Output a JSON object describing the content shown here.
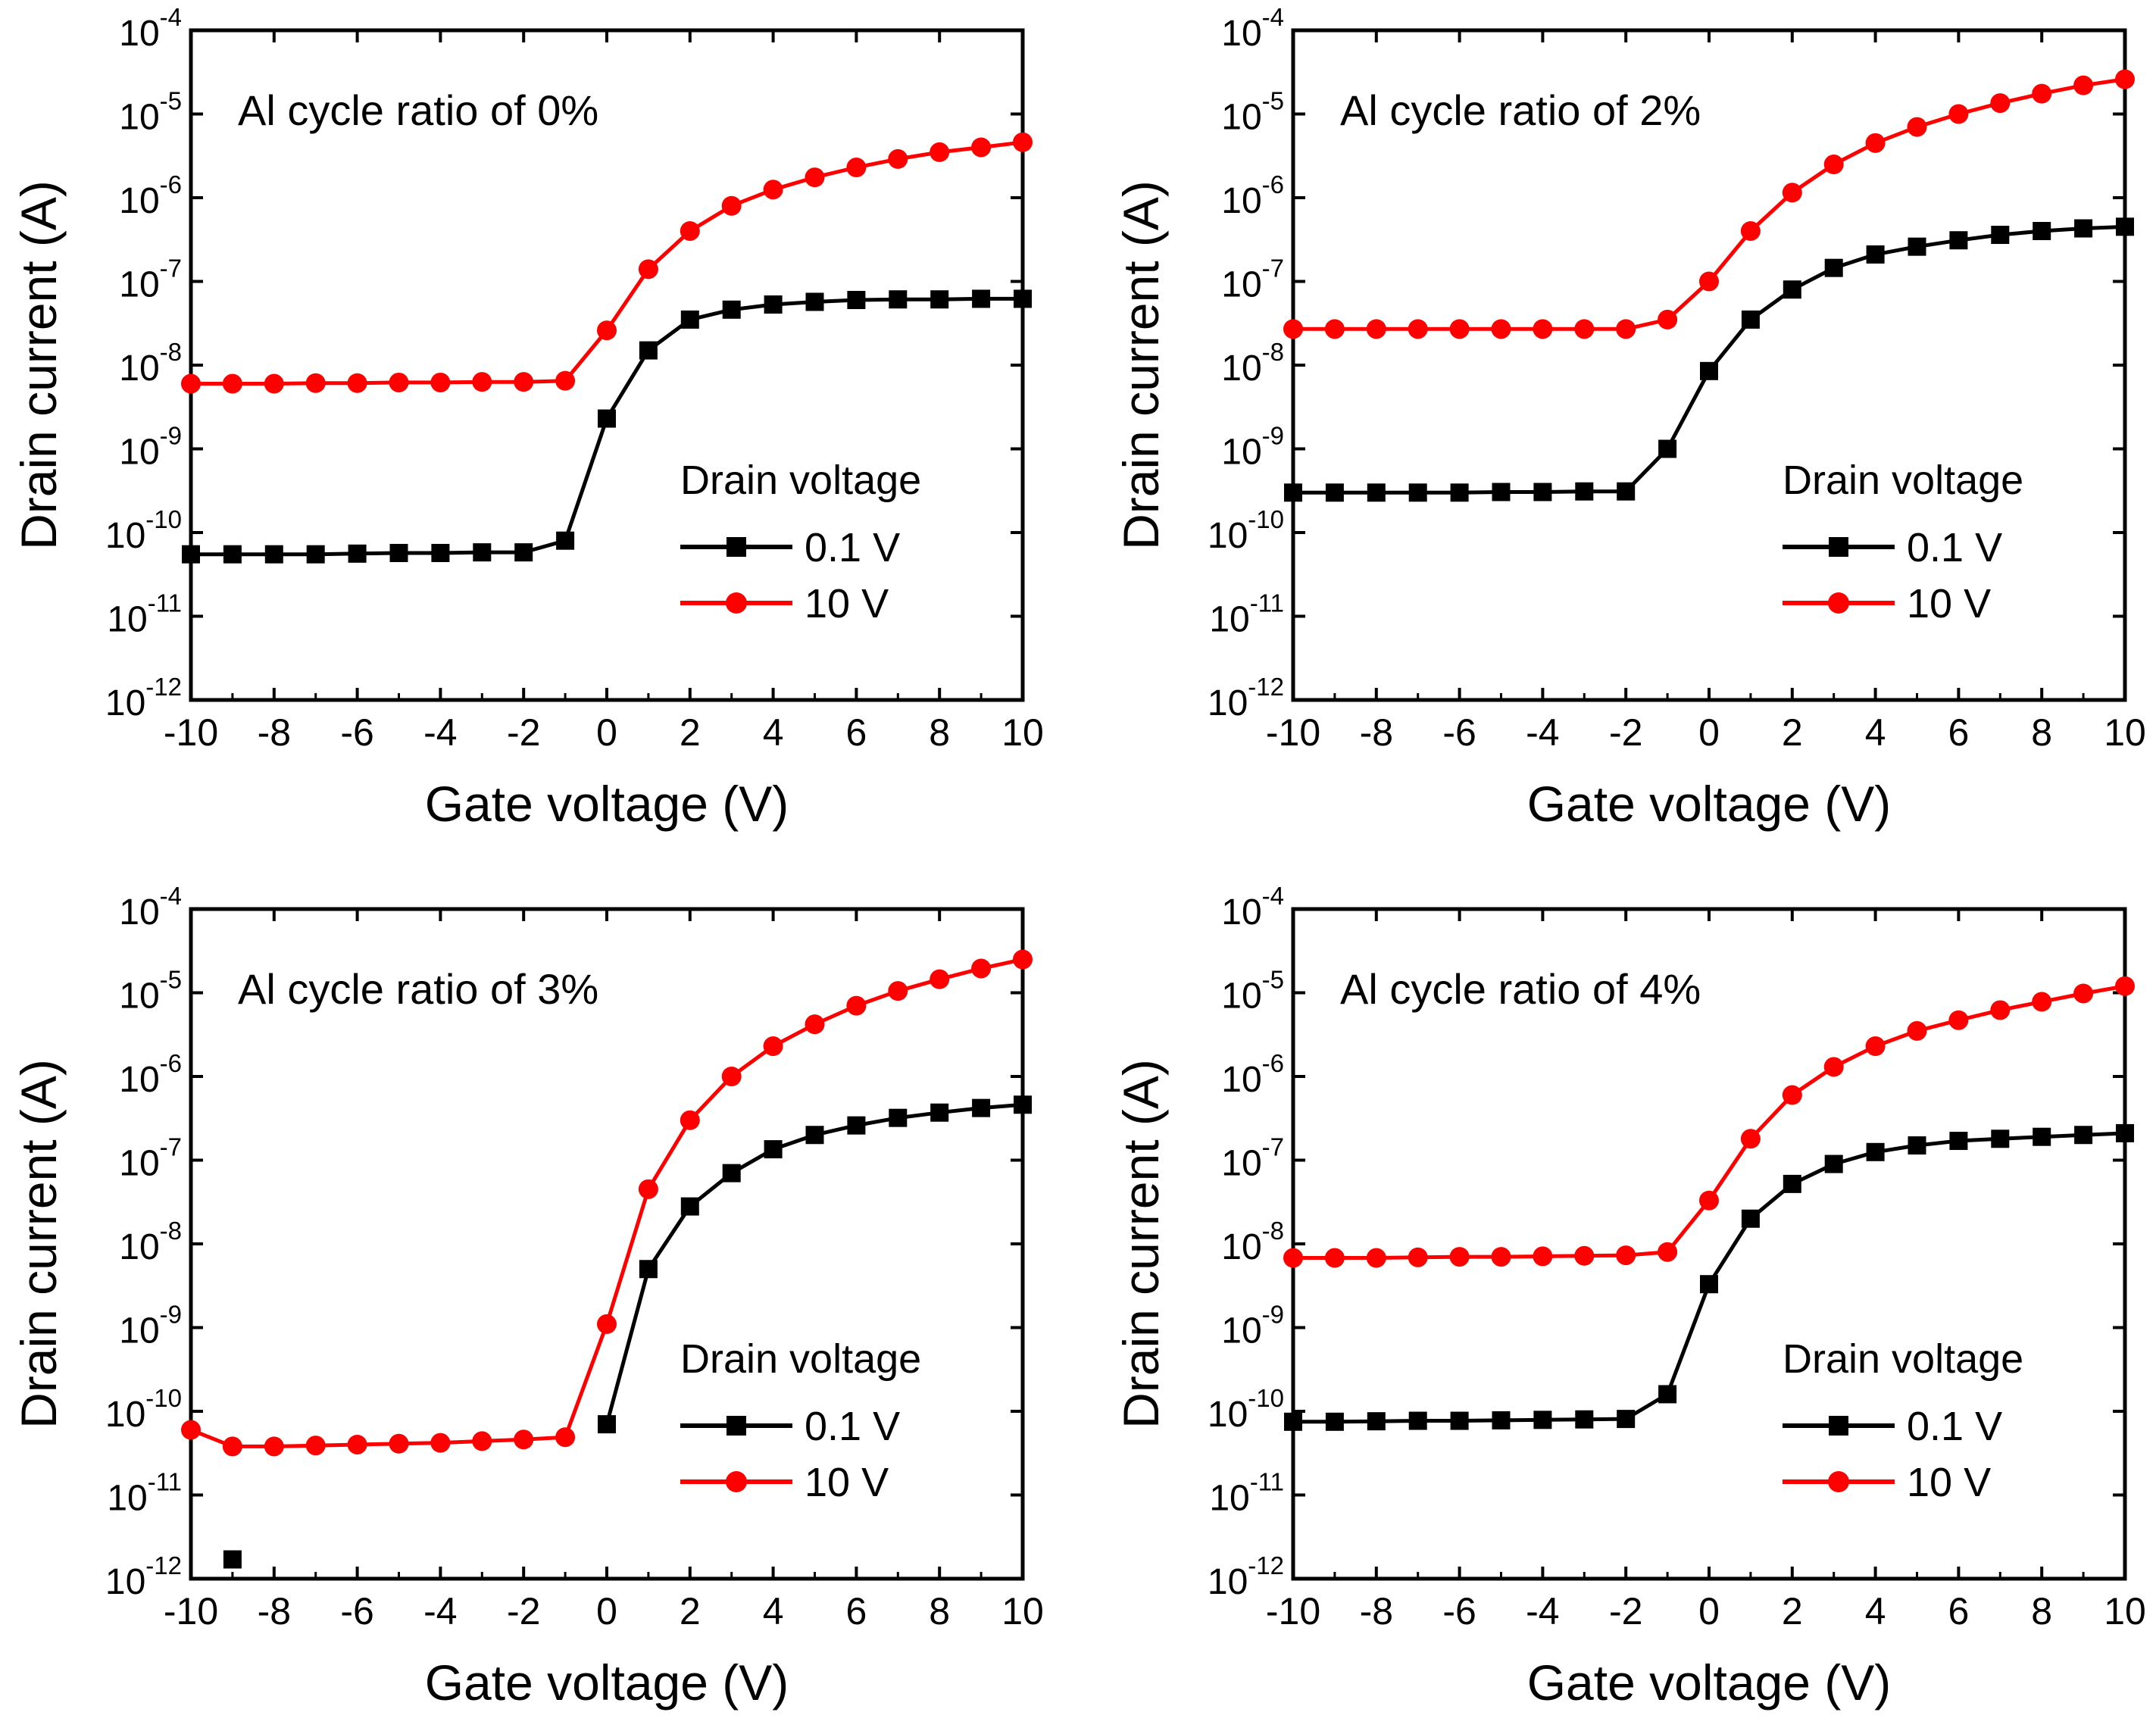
{
  "colors": {
    "series_0_1V": "#000000",
    "series_10V": "#ff0000",
    "axis": "#000000"
  },
  "chart_data": [
    {
      "type": "line",
      "title": "Al cycle ratio of 0%",
      "xlabel": "Gate voltage (V)",
      "ylabel": "Drain current (A)",
      "xlim": [
        -10,
        10
      ],
      "ylim": [
        1e-12,
        0.0001
      ],
      "yscale": "log",
      "xticks": [
        "-10",
        "-8",
        "-6",
        "-4",
        "-2",
        "0",
        "2",
        "4",
        "6",
        "8",
        "10"
      ],
      "yticks": [
        "10-12",
        "10-11",
        "10-10",
        "10-9",
        "10-8",
        "10-7",
        "10-6",
        "10-5",
        "10-4"
      ],
      "legend": {
        "title": "Drain voltage",
        "position": "lower-right",
        "entries": [
          "0.1 V",
          "10 V"
        ]
      },
      "x": [
        -10,
        -9,
        -8,
        -7,
        -6,
        -5,
        -4,
        -3,
        -2,
        -1,
        0,
        1,
        2,
        3,
        4,
        5,
        6,
        7,
        8,
        9,
        10
      ],
      "series": [
        {
          "name": "0.1 V",
          "marker": "square",
          "values": [
            5.5e-11,
            5.5e-11,
            5.5e-11,
            5.5e-11,
            5.6e-11,
            5.7e-11,
            5.7e-11,
            5.8e-11,
            5.8e-11,
            8e-11,
            2.3e-09,
            1.5e-08,
            3.5e-08,
            4.6e-08,
            5.3e-08,
            5.7e-08,
            6e-08,
            6.1e-08,
            6.1e-08,
            6.2e-08,
            6.2e-08
          ]
        },
        {
          "name": "10 V",
          "marker": "circle",
          "values": [
            6e-09,
            6e-09,
            6e-09,
            6.1e-09,
            6.1e-09,
            6.2e-09,
            6.2e-09,
            6.3e-09,
            6.3e-09,
            6.5e-09,
            2.6e-08,
            1.4e-07,
            4e-07,
            8e-07,
            1.25e-06,
            1.75e-06,
            2.3e-06,
            2.9e-06,
            3.5e-06,
            4e-06,
            4.6e-06
          ]
        }
      ]
    },
    {
      "type": "line",
      "title": "Al cycle ratio of 2%",
      "xlabel": "Gate voltage (V)",
      "ylabel": "Drain current (A)",
      "xlim": [
        -10,
        10
      ],
      "ylim": [
        1e-12,
        0.0001
      ],
      "yscale": "log",
      "xticks": [
        "-10",
        "-8",
        "-6",
        "-4",
        "-2",
        "0",
        "2",
        "4",
        "6",
        "8",
        "10"
      ],
      "yticks": [
        "10-12",
        "10-11",
        "10-10",
        "10-9",
        "10-8",
        "10-7",
        "10-6",
        "10-5",
        "10-4"
      ],
      "legend": {
        "title": "Drain voltage",
        "position": "lower-right",
        "entries": [
          "0.1 V",
          "10 V"
        ]
      },
      "x": [
        -10,
        -9,
        -8,
        -7,
        -6,
        -5,
        -4,
        -3,
        -2,
        -1,
        0,
        1,
        2,
        3,
        4,
        5,
        6,
        7,
        8,
        9,
        10
      ],
      "series": [
        {
          "name": "0.1 V",
          "marker": "square",
          "values": [
            3e-10,
            3e-10,
            3e-10,
            3e-10,
            3e-10,
            3.05e-10,
            3.05e-10,
            3.1e-10,
            3.1e-10,
            1e-09,
            8.5e-09,
            3.5e-08,
            8e-08,
            1.45e-07,
            2.1e-07,
            2.6e-07,
            3.1e-07,
            3.6e-07,
            4e-07,
            4.3e-07,
            4.5e-07
          ]
        },
        {
          "name": "10 V",
          "marker": "circle",
          "values": [
            2.7e-08,
            2.7e-08,
            2.7e-08,
            2.7e-08,
            2.7e-08,
            2.7e-08,
            2.7e-08,
            2.7e-08,
            2.7e-08,
            3.5e-08,
            1e-07,
            4e-07,
            1.15e-06,
            2.5e-06,
            4.5e-06,
            7e-06,
            1e-05,
            1.35e-05,
            1.75e-05,
            2.2e-05,
            2.6e-05
          ]
        }
      ]
    },
    {
      "type": "line",
      "title": "Al cycle ratio of 3%",
      "xlabel": "Gate voltage (V)",
      "ylabel": "Drain current (A)",
      "xlim": [
        -10,
        10
      ],
      "ylim": [
        1e-12,
        0.0001
      ],
      "yscale": "log",
      "xticks": [
        "-10",
        "-8",
        "-6",
        "-4",
        "-2",
        "0",
        "2",
        "4",
        "6",
        "8",
        "10"
      ],
      "yticks": [
        "10-12",
        "10-11",
        "10-10",
        "10-9",
        "10-8",
        "10-7",
        "10-6",
        "10-5",
        "10-4"
      ],
      "legend": {
        "title": "Drain voltage",
        "position": "lower-right",
        "entries": [
          "0.1 V",
          "10 V"
        ]
      },
      "x": [
        -10,
        -9,
        -8,
        -7,
        -6,
        -5,
        -4,
        -3,
        -2,
        -1,
        0,
        1,
        2,
        3,
        4,
        5,
        6,
        7,
        8,
        9,
        10
      ],
      "series": [
        {
          "name": "0.1 V",
          "marker": "square",
          "values": [
            null,
            1.7e-12,
            null,
            null,
            null,
            null,
            null,
            null,
            null,
            null,
            7e-11,
            5e-09,
            2.8e-08,
            7e-08,
            1.35e-07,
            2e-07,
            2.6e-07,
            3.2e-07,
            3.7e-07,
            4.2e-07,
            4.6e-07
          ]
        },
        {
          "name": "10 V",
          "marker": "circle",
          "values": [
            6e-11,
            3.8e-11,
            3.8e-11,
            3.9e-11,
            4e-11,
            4.1e-11,
            4.2e-11,
            4.4e-11,
            4.6e-11,
            4.9e-11,
            1.1e-09,
            4.5e-08,
            3e-07,
            1e-06,
            2.3e-06,
            4.2e-06,
            7e-06,
            1.05e-05,
            1.45e-05,
            1.95e-05,
            2.5e-05
          ]
        }
      ]
    },
    {
      "type": "line",
      "title": "Al cycle ratio of 4%",
      "xlabel": "Gate voltage (V)",
      "ylabel": "Drain current (A)",
      "xlim": [
        -10,
        10
      ],
      "ylim": [
        1e-12,
        0.0001
      ],
      "yscale": "log",
      "xticks": [
        "-10",
        "-8",
        "-6",
        "-4",
        "-2",
        "0",
        "2",
        "4",
        "6",
        "8",
        "10"
      ],
      "yticks": [
        "10-12",
        "10-11",
        "10-10",
        "10-9",
        "10-8",
        "10-7",
        "10-6",
        "10-5",
        "10-4"
      ],
      "legend": {
        "title": "Drain voltage",
        "position": "lower-right",
        "entries": [
          "0.1 V",
          "10 V"
        ]
      },
      "x": [
        -10,
        -9,
        -8,
        -7,
        -6,
        -5,
        -4,
        -3,
        -2,
        -1,
        0,
        1,
        2,
        3,
        4,
        5,
        6,
        7,
        8,
        9,
        10
      ],
      "series": [
        {
          "name": "0.1 V",
          "marker": "square",
          "values": [
            7.5e-11,
            7.5e-11,
            7.6e-11,
            7.7e-11,
            7.7e-11,
            7.8e-11,
            7.9e-11,
            8e-11,
            8.1e-11,
            1.6e-10,
            3.3e-09,
            2e-08,
            5.2e-08,
            9e-08,
            1.25e-07,
            1.5e-07,
            1.7e-07,
            1.8e-07,
            1.9e-07,
            2e-07,
            2.1e-07
          ]
        },
        {
          "name": "10 V",
          "marker": "circle",
          "values": [
            6.8e-09,
            6.8e-09,
            6.8e-09,
            6.9e-09,
            7e-09,
            7e-09,
            7.1e-09,
            7.2e-09,
            7.3e-09,
            8e-09,
            3.3e-08,
            1.8e-07,
            6e-07,
            1.3e-06,
            2.3e-06,
            3.5e-06,
            4.7e-06,
            6.2e-06,
            7.8e-06,
            9.8e-06,
            1.2e-05
          ]
        }
      ]
    }
  ]
}
